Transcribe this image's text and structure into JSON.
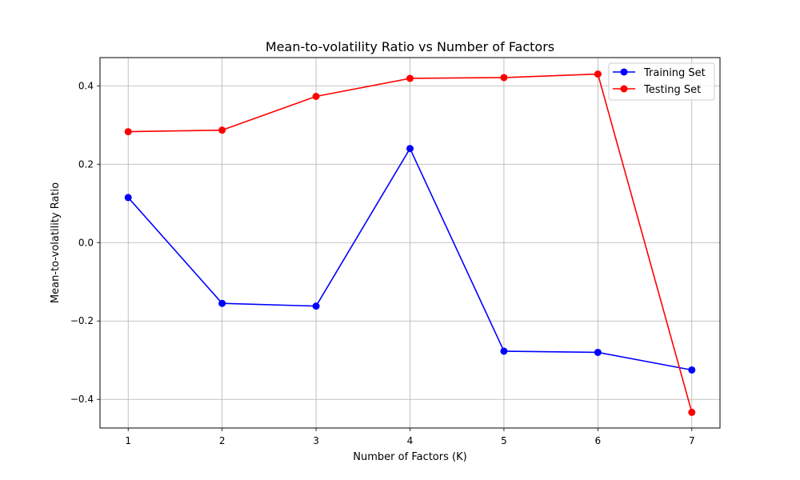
{
  "chart_data": {
    "type": "line",
    "title": "Mean-to-volatility Ratio vs Number of Factors",
    "xlabel": "Number of Factors (K)",
    "ylabel": "Mean-to-volatility Ratio",
    "x": [
      1,
      2,
      3,
      4,
      5,
      6,
      7
    ],
    "x_ticks": [
      "1",
      "2",
      "3",
      "4",
      "5",
      "6",
      "7"
    ],
    "y_ticks": [
      "−0.4",
      "−0.2",
      "0.0",
      "0.2",
      "0.4"
    ],
    "y_tick_values": [
      -0.4,
      -0.2,
      0.0,
      0.2,
      0.4
    ],
    "xlim": [
      0.7,
      7.3
    ],
    "ylim": [
      -0.473,
      0.472
    ],
    "grid": true,
    "legend_position": "top-right",
    "series": [
      {
        "name": "Training Set",
        "color": "#0000ff",
        "marker": "circle",
        "values": [
          0.115,
          -0.155,
          -0.162,
          0.24,
          -0.277,
          -0.28,
          -0.325
        ]
      },
      {
        "name": "Testing Set",
        "color": "#ff0000",
        "marker": "circle",
        "values": [
          0.283,
          0.287,
          0.373,
          0.419,
          0.421,
          0.43,
          -0.433
        ]
      }
    ]
  }
}
